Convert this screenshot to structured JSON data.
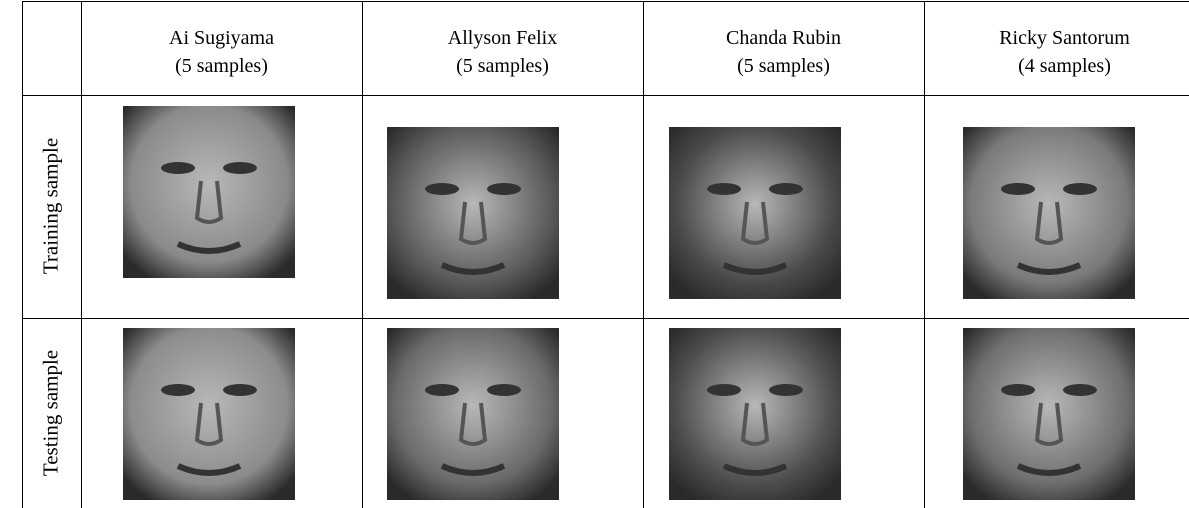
{
  "table": {
    "columns": [
      {
        "name": "Ai Sugiyama",
        "samples": "(5 samples)"
      },
      {
        "name": "Allyson Felix",
        "samples": "(5 samples)"
      },
      {
        "name": "Chanda Rubin",
        "samples": "(5 samples)"
      },
      {
        "name": "Ricky Santorum",
        "samples": "(4 samples)"
      }
    ],
    "rows": [
      "Training sample",
      "Testing sample"
    ]
  }
}
